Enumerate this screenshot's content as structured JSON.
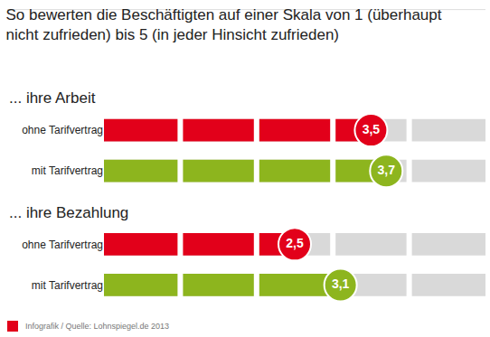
{
  "chart_data": {
    "type": "bar",
    "title": "So bewerten die Beschäftigten auf einer Skala von 1 (überhaupt nicht zufrieden) bis 5 (in jeder Hinsicht zufrieden)",
    "orientation": "horizontal",
    "categories": [
      "ohne Tarifvertrag",
      "mit Tarifvertrag",
      "ohne Tarifvertrag",
      "mit Tarifvertrag"
    ],
    "values": [
      3.5,
      3.7,
      2.5,
      3.1
    ],
    "value_labels": [
      "3,5",
      "3,7",
      "2,5",
      "3,1"
    ],
    "colors": [
      "#e2001a",
      "#8db51e",
      "#e2001a",
      "#8db51e"
    ],
    "annotations": [
      "... ihre Arbeit",
      "... ihre Bezahlung"
    ],
    "source": "Infografik / Quelle: Lohnspiegel.de 2013",
    "xlim": [
      0,
      5
    ],
    "data_labels": true,
    "tick_labels": "y",
    "grid": false
  }
}
